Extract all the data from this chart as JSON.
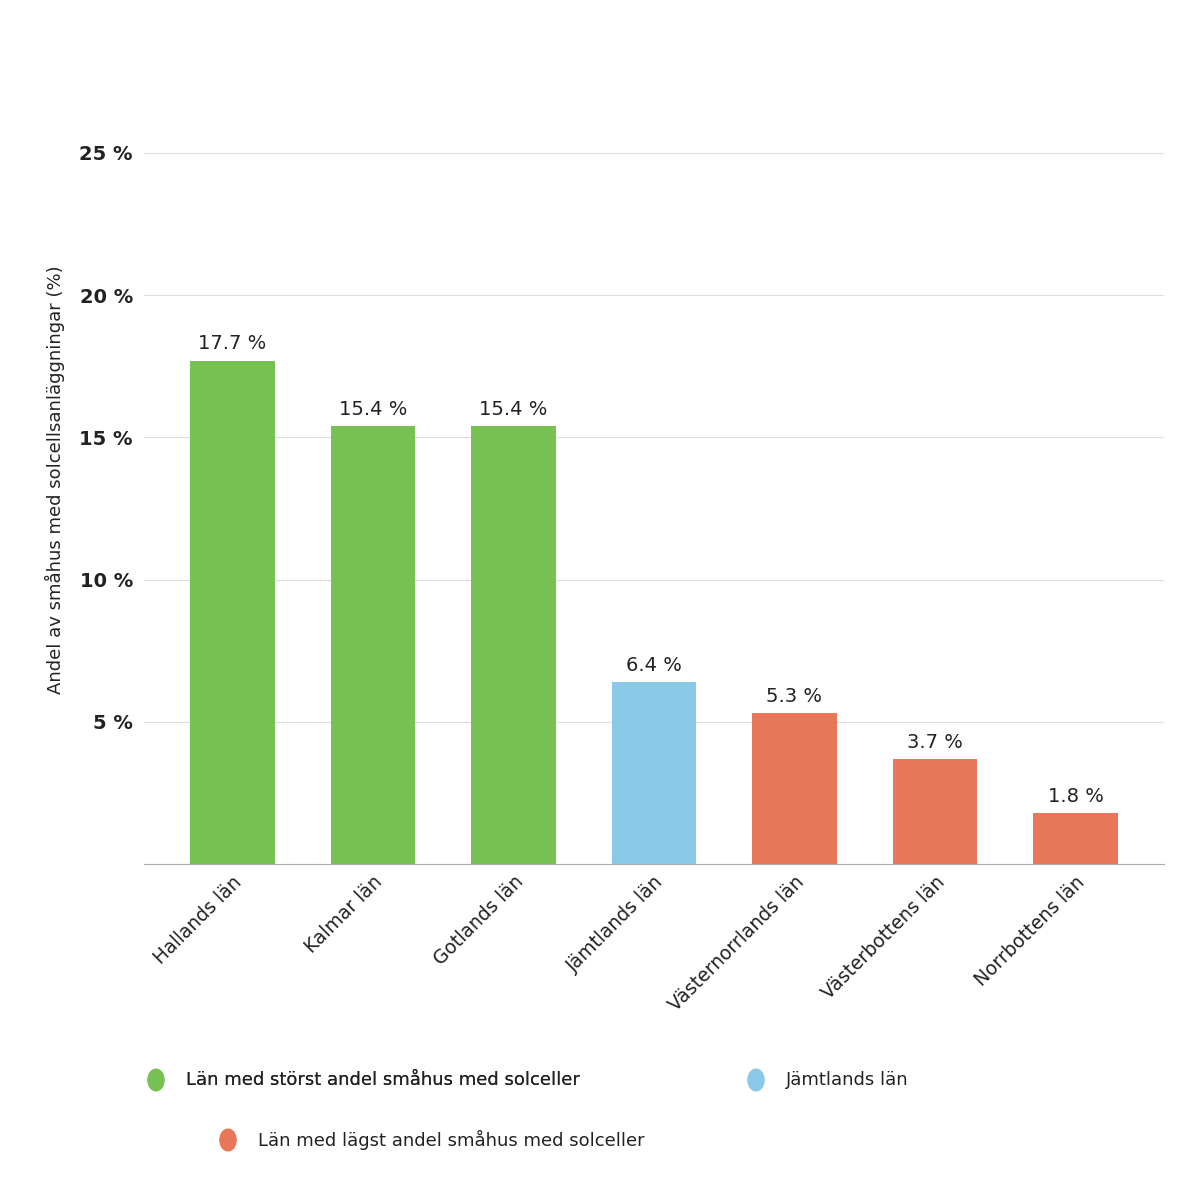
{
  "categories": [
    "Hallands län",
    "Kalmar län",
    "Gotlands län",
    "Jämtlands län",
    "Västernorrlands län",
    "Västerbottens län",
    "Norrbottens län"
  ],
  "values": [
    17.7,
    15.4,
    15.4,
    6.4,
    5.3,
    3.7,
    1.8
  ],
  "bar_colors": [
    "#77C152",
    "#77C152",
    "#77C152",
    "#8AC8E8",
    "#E8775A",
    "#E8775A",
    "#E8775A"
  ],
  "labels": [
    "17.7 %",
    "15.4 %",
    "15.4 %",
    "6.4 %",
    "5.3 %",
    "3.7 %",
    "1.8 %"
  ],
  "ylabel": "Andel av småhus med solcellsanläggningar (%)",
  "yticks": [
    0,
    5,
    10,
    15,
    20,
    25
  ],
  "ytick_labels": [
    "",
    "5 %",
    "10 %",
    "15 %",
    "20 %",
    "25 %"
  ],
  "ylim": [
    0,
    27
  ],
  "background_color": "#FFFFFF",
  "grid_color": "#DDDDDD",
  "text_color": "#222222",
  "legend_row1": [
    {
      "label": "Län med störst andel småhus med solceller",
      "color": "#77C152"
    },
    {
      "label": "Jämtlands län",
      "color": "#8AC8E8"
    }
  ],
  "legend_row2": [
    {
      "label": "Län med lägst andel småhus med solceller",
      "color": "#E8775A"
    }
  ]
}
